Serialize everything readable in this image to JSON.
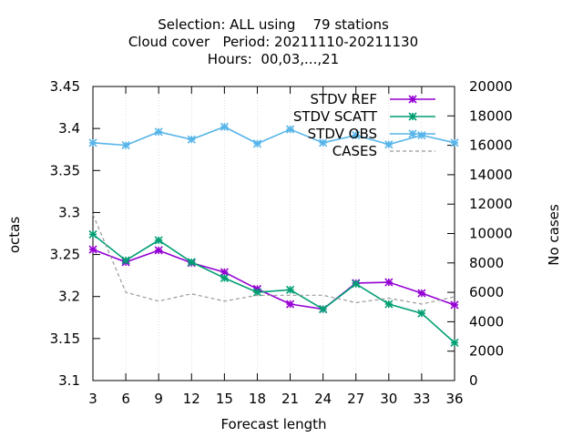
{
  "chart_data": {
    "type": "line",
    "title_lines": [
      "Selection: ALL using    79 stations",
      "Cloud cover   Period: 20211110-20211130",
      "Hours:  00,03,...,21"
    ],
    "xlabel": "Forecast length",
    "ylabel": "octas",
    "y2label": "No cases",
    "x": [
      3,
      6,
      9,
      12,
      15,
      18,
      21,
      24,
      27,
      30,
      33,
      36
    ],
    "xlim": [
      3,
      36
    ],
    "ylim": [
      3.1,
      3.45
    ],
    "y2lim": [
      0,
      20000
    ],
    "y_ticks": [
      "3.1",
      "3.15",
      "3.2",
      "3.25",
      "3.3",
      "3.35",
      "3.4",
      "3.45"
    ],
    "y2_ticks": [
      "0",
      "2000",
      "4000",
      "6000",
      "8000",
      "10000",
      "12000",
      "14000",
      "16000",
      "18000",
      "20000"
    ],
    "x_ticks": [
      "3",
      "6",
      "9",
      "12",
      "15",
      "18",
      "21",
      "24",
      "27",
      "30",
      "33",
      "36"
    ],
    "legend_position": "top-right",
    "series": [
      {
        "name": "STDV REF",
        "color": "#9400d3",
        "axis": "y1",
        "marker": "x-star",
        "values": [
          3.256,
          3.241,
          3.255,
          3.24,
          3.229,
          3.209,
          3.191,
          3.185,
          3.216,
          3.217,
          3.204,
          3.19
        ]
      },
      {
        "name": "STDV SCATT",
        "color": "#009e73",
        "axis": "y1",
        "marker": "x-star",
        "values": [
          3.274,
          3.243,
          3.267,
          3.241,
          3.222,
          3.205,
          3.208,
          3.185,
          3.215,
          3.191,
          3.18,
          3.145
        ]
      },
      {
        "name": "STDV OBS",
        "color": "#56b4e9",
        "axis": "y1",
        "marker": "x-star",
        "values": [
          3.383,
          3.38,
          3.396,
          3.387,
          3.402,
          3.382,
          3.399,
          3.383,
          3.392,
          3.381,
          3.392,
          3.383
        ]
      },
      {
        "name": "CASES",
        "color": "#999999",
        "axis": "y2",
        "marker": "none",
        "dashed": true,
        "values": [
          11300,
          6000,
          5400,
          5900,
          5400,
          5800,
          5800,
          5800,
          5300,
          5600,
          5200,
          5700
        ]
      }
    ]
  }
}
